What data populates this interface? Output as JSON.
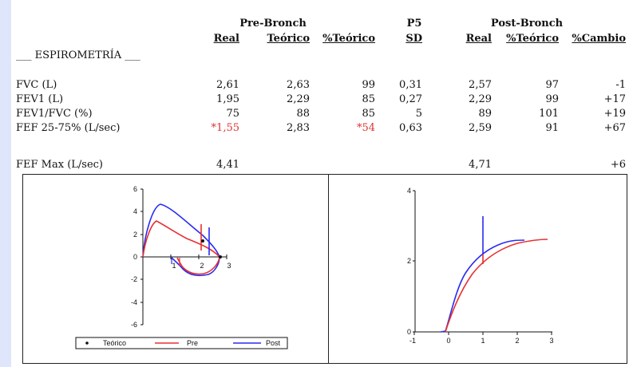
{
  "headers": {
    "pre_bronch": "Pre-Bronch",
    "p5": "P5",
    "post_bronch": "Post-Bronch",
    "section_title": "___ ESPIROMETRÍA ___",
    "cols": [
      "Real",
      "Teórico",
      "%Teórico",
      "SD",
      "Real",
      "%Teórico",
      "%Cambio"
    ]
  },
  "rows": [
    {
      "label": "FVC (L)",
      "pre_real": "2,61",
      "pre_teorico": "2,63",
      "pre_pct": "99",
      "sd": "0,31",
      "post_real": "2,57",
      "post_pct": "97",
      "cambio": "-1"
    },
    {
      "label": "FEV1 (L)",
      "pre_real": "1,95",
      "pre_teorico": "2,29",
      "pre_pct": "85",
      "sd": "0,27",
      "post_real": "2,29",
      "post_pct": "99",
      "cambio": "+17"
    },
    {
      "label": "FEV1/FVC (%)",
      "pre_real": "75",
      "pre_teorico": "88",
      "pre_pct": "85",
      "sd": "5",
      "post_real": "89",
      "post_pct": "101",
      "cambio": "+19"
    },
    {
      "label": "FEF 25-75% (L/sec)",
      "pre_real": "*1,55",
      "pre_teorico": "2,83",
      "pre_pct": "*54",
      "sd": "0,63",
      "post_real": "2,59",
      "post_pct": "91",
      "cambio": "+67"
    }
  ],
  "fefmax": {
    "label": "FEF Max (L/sec)",
    "pre_real": "4,41",
    "post_real": "4,71",
    "cambio": "+6"
  },
  "colors": {
    "pre": "#e83030",
    "post": "#2a2af0",
    "abnormal": "#e03030",
    "background": "#dfe6fb"
  },
  "flow_volume": {
    "y_ticks": [
      "6",
      "4",
      "2",
      "0",
      "-2",
      "-4",
      "-6"
    ],
    "x_ticks": [
      "1",
      "2",
      "3"
    ],
    "legend": [
      "Teórico",
      "Pre",
      "Post"
    ]
  },
  "volume_time": {
    "y_ticks": [
      "4",
      "2",
      "0"
    ],
    "x_ticks": [
      "-1",
      "0",
      "1",
      "2",
      "3"
    ]
  }
}
